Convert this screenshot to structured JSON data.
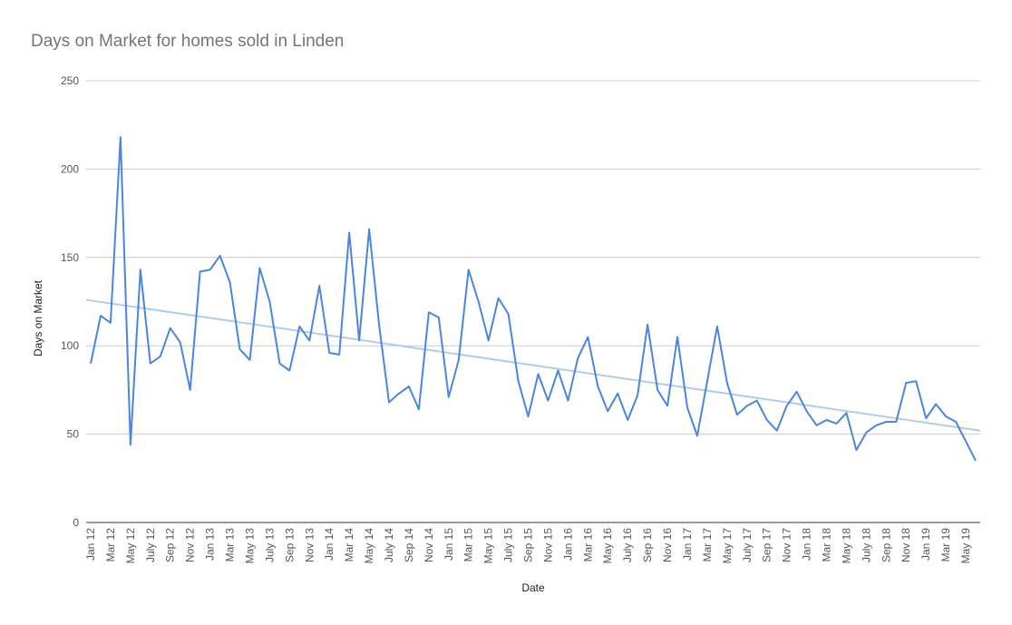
{
  "chart_data": {
    "type": "line",
    "title": "Days on Market for homes sold in Linden",
    "xlabel": "Date",
    "ylabel": "Days on Market",
    "ylim": [
      0,
      250
    ],
    "yticks": [
      0,
      50,
      100,
      150,
      200,
      250
    ],
    "grid": true,
    "trendline": true,
    "colors": {
      "series": "#4a86e0",
      "trendline": "#afcdeb",
      "grid": "#cccccc"
    },
    "x": [
      "Jan 12",
      "Feb 12",
      "Mar 12",
      "Apr 12",
      "May 12",
      "Jun 12",
      "July 12",
      "Aug 12",
      "Sep 12",
      "Oct 12",
      "Nov 12",
      "Dec 12",
      "Jan 13",
      "Feb 13",
      "Mar 13",
      "Apr 13",
      "May 13",
      "Jun 13",
      "July 13",
      "Aug 13",
      "Sep 13",
      "Oct 13",
      "Nov 13",
      "Dec 13",
      "Jan 14",
      "Feb 14",
      "Mar 14",
      "Apr 14",
      "May 14",
      "Jun 14",
      "July 14",
      "Aug 14",
      "Sep 14",
      "Oct 14",
      "Nov 14",
      "Dec 14",
      "Jan 15",
      "Feb 15",
      "Mar 15",
      "Apr 15",
      "May 15",
      "Jun 15",
      "July 15",
      "Aug 15",
      "Sep 15",
      "Oct 15",
      "Nov 15",
      "Dec 15",
      "Jan 16",
      "Feb 16",
      "Mar 16",
      "Apr 16",
      "May 16",
      "Jun 16",
      "July 16",
      "Aug 16",
      "Sep 16",
      "Oct 16",
      "Nov 16",
      "Dec 16",
      "Jan 17",
      "Feb 17",
      "Mar 17",
      "Apr 17",
      "May 17",
      "Jun 17",
      "July 17",
      "Aug 17",
      "Sep 17",
      "Oct 17",
      "Nov 17",
      "Dec 17",
      "Jan 18",
      "Feb 18",
      "Mar 18",
      "Apr 18",
      "May 18",
      "Jun 18",
      "July 18",
      "Aug 18",
      "Sep 18",
      "Oct 18",
      "Nov 18",
      "Dec 18",
      "Jan 19",
      "Feb 19",
      "Mar 19",
      "Apr 19",
      "May 19",
      "Jun 19"
    ],
    "xticks": [
      "Jan 12",
      "Mar 12",
      "May 12",
      "July 12",
      "Sep 12",
      "Nov 12",
      "Jan 13",
      "Mar 13",
      "May 13",
      "July 13",
      "Sep 13",
      "Nov 13",
      "Jan 14",
      "Mar 14",
      "May 14",
      "July 14",
      "Sep 14",
      "Nov 14",
      "Jan 15",
      "Mar 15",
      "May 15",
      "July 15",
      "Sep 15",
      "Nov 15",
      "Jan 16",
      "Mar 16",
      "May 16",
      "July 16",
      "Sep 16",
      "Nov 16",
      "Jan 17",
      "Mar 17",
      "May 17",
      "July 17",
      "Sep 17",
      "Nov 17",
      "Jan 18",
      "Mar 18",
      "May 18",
      "July 18",
      "Sep 18",
      "Nov 18",
      "Jan 19",
      "Mar 19",
      "May 19"
    ],
    "series": [
      {
        "values": [
          90,
          117,
          113,
          218,
          44,
          143,
          90,
          94,
          110,
          102,
          75,
          142,
          143,
          151,
          136,
          98,
          92,
          144,
          125,
          90,
          86,
          111,
          103,
          134,
          96,
          95,
          164,
          103,
          166,
          112,
          68,
          73,
          77,
          64,
          119,
          116,
          71,
          92,
          143,
          125,
          103,
          127,
          118,
          80,
          60,
          84,
          69,
          86,
          69,
          93,
          105,
          77,
          63,
          73,
          58,
          72,
          112,
          75,
          66,
          105,
          65,
          49,
          80,
          111,
          79,
          61,
          66,
          69,
          58,
          52,
          66,
          74,
          63,
          55,
          58,
          56,
          62,
          41,
          51,
          55,
          57,
          57,
          79,
          80,
          59,
          67,
          60,
          57,
          46,
          35
        ]
      }
    ],
    "trend": {
      "start": 126,
      "end": 52
    }
  }
}
